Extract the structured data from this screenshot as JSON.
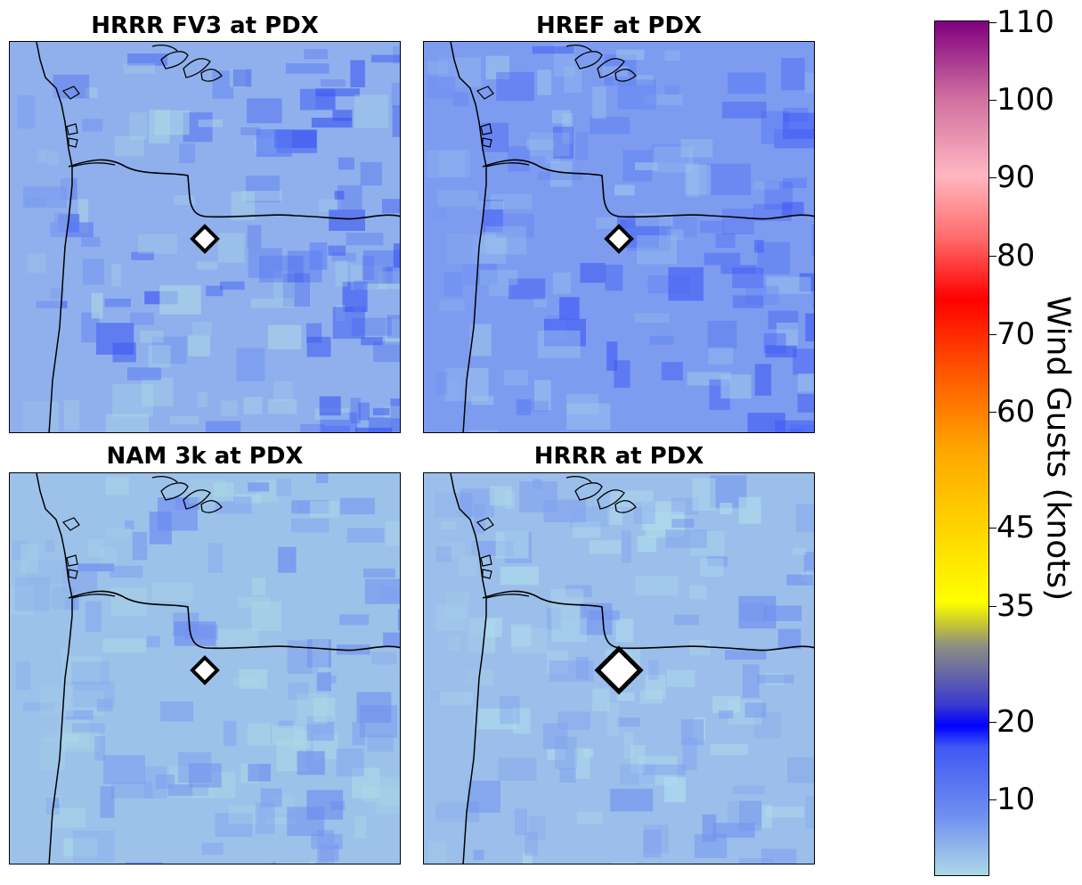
{
  "panels": [
    {
      "title": "HRRR FV3 at PDX",
      "marker": "small",
      "shade": "fv3"
    },
    {
      "title": "HREF at PDX",
      "marker": "small",
      "shade": "href"
    },
    {
      "title": "NAM 3k at PDX",
      "marker": "small",
      "shade": "nam"
    },
    {
      "title": "HRRR at PDX",
      "marker": "large",
      "shade": "hrrr"
    }
  ],
  "colorbar": {
    "label": "Wind Gusts (knots)",
    "ticks": [
      "10",
      "20",
      "35",
      "45",
      "60",
      "70",
      "80",
      "90",
      "100",
      "110"
    ],
    "colors": {
      "min": "#add8e6",
      "low": "#6f8ff0",
      "blue": "#0000ff",
      "olive": "#c8c830",
      "yellow": "#ffff00",
      "gold": "#ffd700",
      "orange": "#ffa500",
      "red": "#ff0000",
      "pink": "#ffb6c1",
      "purple": "#800080"
    }
  },
  "marker_colors": {
    "fill": "#ffffff",
    "stroke": "#000000"
  }
}
